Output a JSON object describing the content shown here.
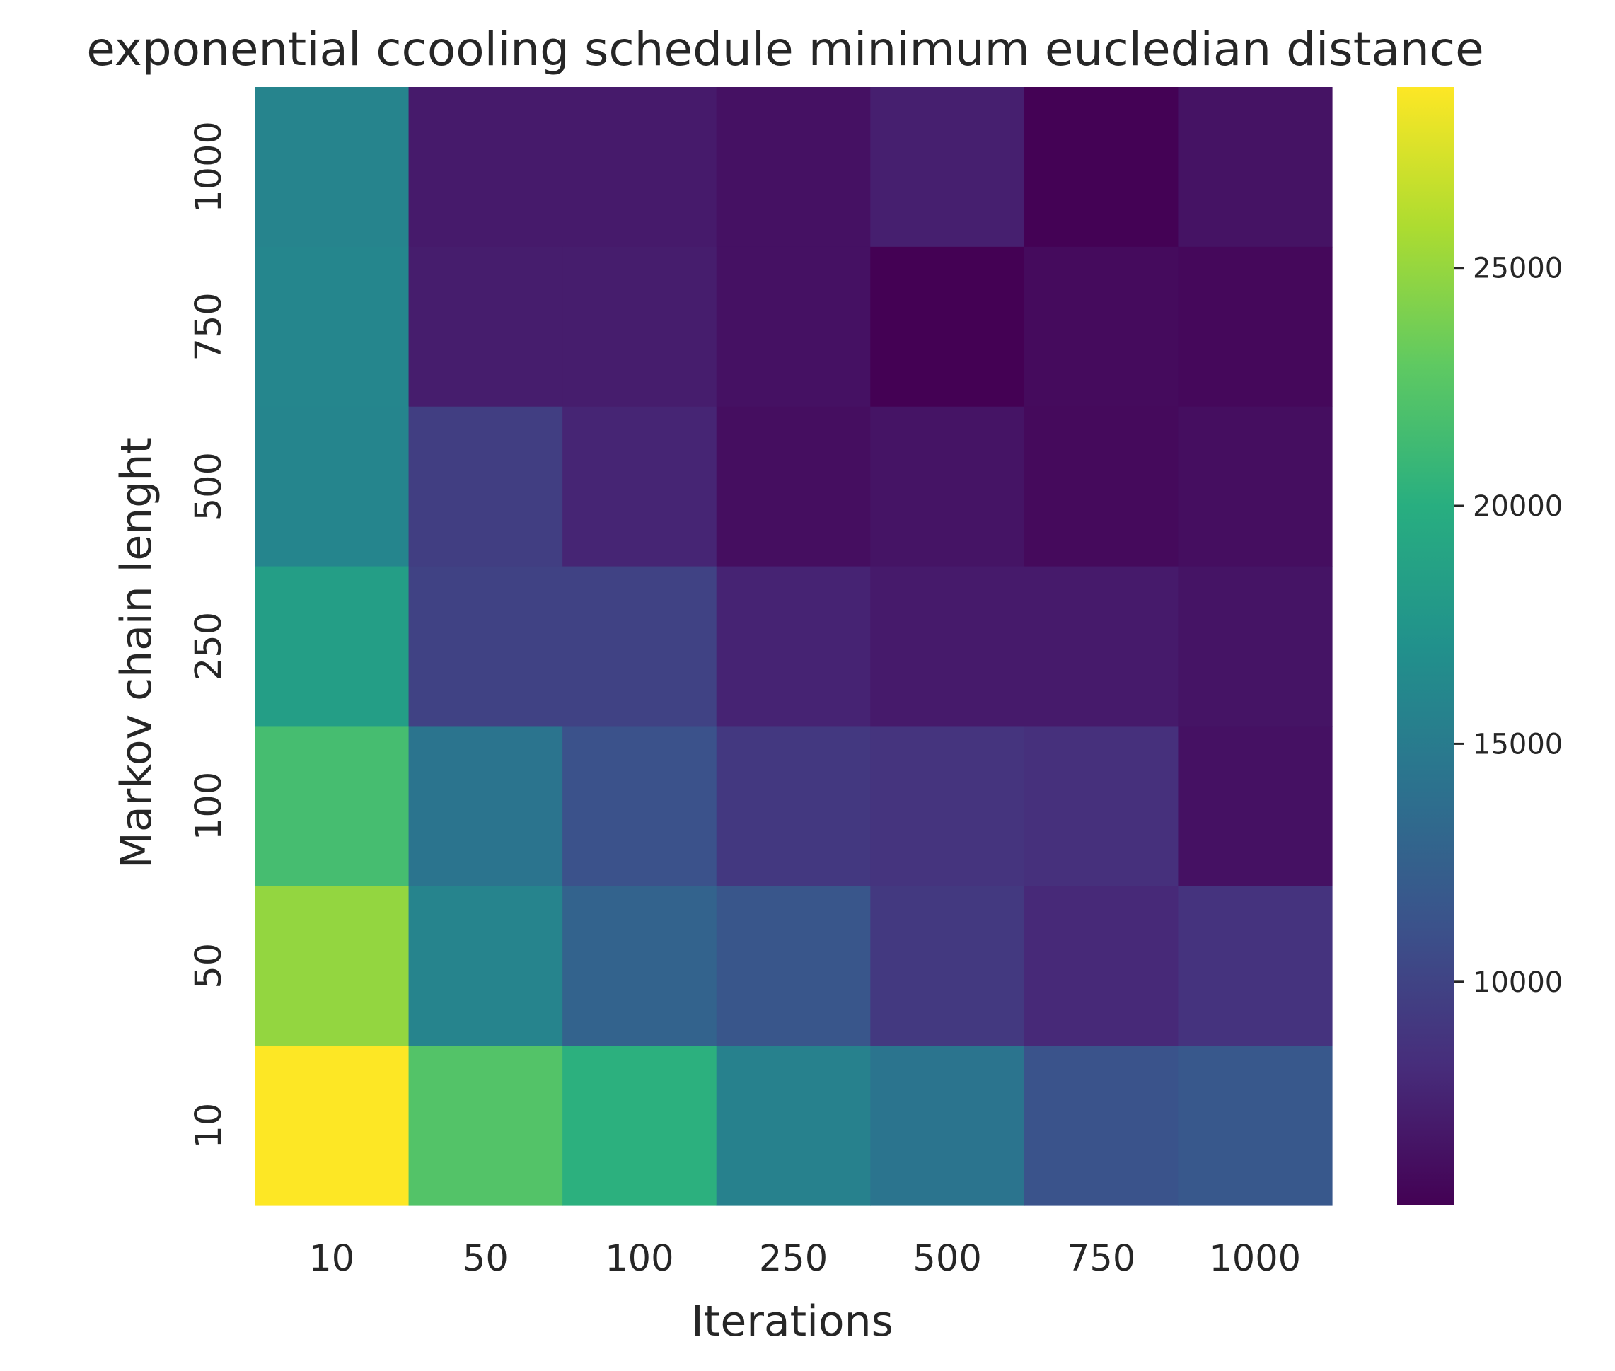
{
  "chart_data": {
    "type": "heatmap",
    "title": "exponential ccooling schedule minimum eucledian distance",
    "xlabel": "Iterations",
    "ylabel": "Markov chain lenght",
    "x_categories": [
      "10",
      "50",
      "100",
      "250",
      "500",
      "750",
      "1000"
    ],
    "y_categories": [
      "1000",
      "750",
      "500",
      "250",
      "100",
      "50",
      "10"
    ],
    "values": [
      [
        15800,
        7000,
        7000,
        6400,
        7300,
        5400,
        6500
      ],
      [
        16000,
        7200,
        7200,
        6400,
        5300,
        6000,
        5800
      ],
      [
        15900,
        9600,
        7700,
        6200,
        6600,
        5900,
        6200
      ],
      [
        18400,
        9900,
        9900,
        7600,
        7000,
        7000,
        6600
      ],
      [
        21600,
        14300,
        11200,
        9100,
        8800,
        8500,
        6400
      ],
      [
        24900,
        15800,
        12700,
        11500,
        9200,
        8000,
        8700
      ],
      [
        28800,
        22300,
        20200,
        15500,
        14300,
        11300,
        11700
      ]
    ],
    "colorbar": {
      "min": 5300,
      "max": 28800,
      "ticks": [
        10000,
        15000,
        20000,
        25000
      ],
      "tick_labels": [
        "10000",
        "15000",
        "20000",
        "25000"
      ],
      "colormap": "viridis"
    },
    "grid": false
  }
}
